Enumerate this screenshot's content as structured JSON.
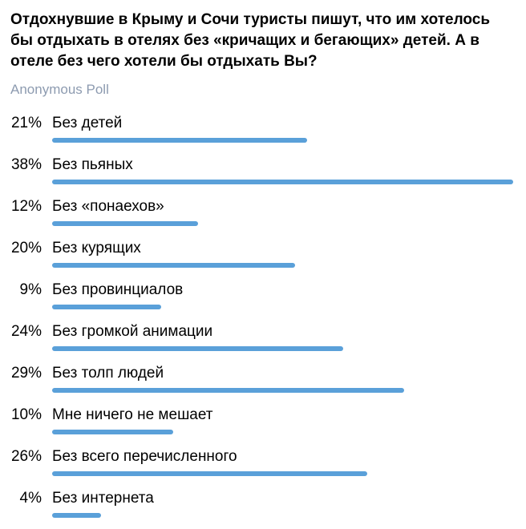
{
  "poll": {
    "question": "Отдохнувшие в Крыму и Сочи туристы пишут, что им хотелось бы отдыхать в отелях без «кричащих и бегающих» детей. А в отеле без чего хотели бы отдыхать Вы?",
    "type_label": "Anonymous Poll",
    "bar_color": "#5aa0d9",
    "options": [
      {
        "percent_label": "21%",
        "percent": 21,
        "text": "Без детей"
      },
      {
        "percent_label": "38%",
        "percent": 38,
        "text": "Без пьяных"
      },
      {
        "percent_label": "12%",
        "percent": 12,
        "text": "Без «понаехов»"
      },
      {
        "percent_label": "20%",
        "percent": 20,
        "text": "Без курящих"
      },
      {
        "percent_label": "9%",
        "percent": 9,
        "text": "Без провинциалов"
      },
      {
        "percent_label": "24%",
        "percent": 24,
        "text": "Без громкой анимации"
      },
      {
        "percent_label": "29%",
        "percent": 29,
        "text": "Без толп людей"
      },
      {
        "percent_label": "10%",
        "percent": 10,
        "text": "Мне ничего не мешает"
      },
      {
        "percent_label": "26%",
        "percent": 26,
        "text": "Без всего перечисленного"
      },
      {
        "percent_label": "4%",
        "percent": 4,
        "text": "Без интернета"
      }
    ]
  }
}
